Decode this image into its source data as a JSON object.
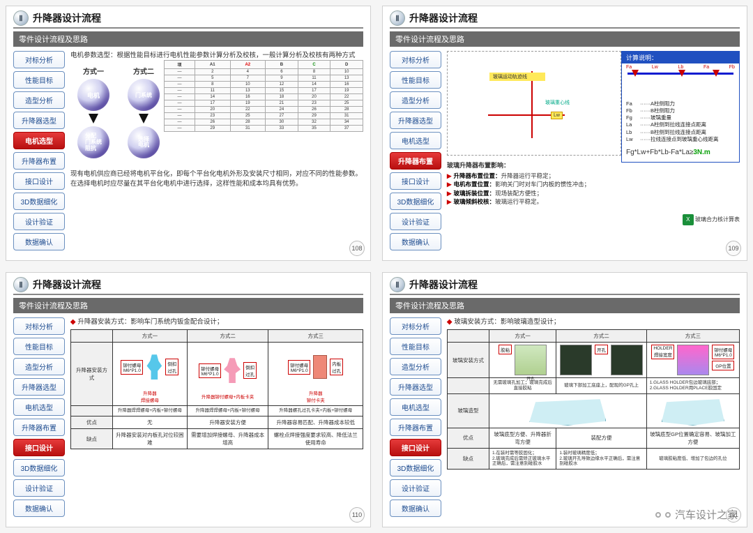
{
  "header": {
    "roman": "Ⅱ",
    "title": "升降器设计流程",
    "subtitle": "零件设计流程及思路"
  },
  "sidebar": [
    "对标分析",
    "性能目标",
    "造型分析",
    "升降器选型",
    "电机选型",
    "升降器布置",
    "接口设计",
    "3D数据细化",
    "设计验证",
    "数据确认"
  ],
  "page_numbers": [
    "108",
    "109",
    "110",
    "111"
  ],
  "active_index": [
    4,
    5,
    6,
    6
  ],
  "slide108": {
    "desc": "电机参数选型：根据性能目标进行电机性能参数计算分析及校核，一般计算分析及校核有两种方式",
    "m1": "方式一",
    "m2": "方式二",
    "ring_a1": "电机",
    "ring_a2": "分配\n门系统\n阻抗",
    "ring_b1": "门系统",
    "ring_b2": "选择\n电机",
    "note": "现有电机供应商已经将电机平台化，即每个平台化电机外形及安装尺寸相同，对应不同的性能参数。在选择电机时应尽量在其平台化电机中进行选择，这样性能和成本均具有优势。",
    "spec_headers": [
      "项",
      "A1",
      "A2",
      "B",
      "C",
      "D"
    ],
    "spec_rows": 10
  },
  "slide109": {
    "calc_title": "计算说明：",
    "torque_pts": [
      "Fa",
      "Lw",
      "Lb",
      "Fa",
      "Fb"
    ],
    "legend": [
      [
        "Fa",
        "A柱侧阻力"
      ],
      [
        "Fb",
        "B柱侧阻力"
      ],
      [
        "Fg",
        "玻璃重量"
      ],
      [
        "La",
        "A柱侧到拉线连接点距离"
      ],
      [
        "Lb",
        "B柱侧到拉线连接点距离"
      ],
      [
        "Lw",
        "拉线连接点到玻璃重心线距离"
      ]
    ],
    "formula_l": "Fg*Lw+Fb*Lb-Fa*La≥",
    "formula_r": "3N.m",
    "layout_title": "玻璃升降器布置影响：",
    "pts": [
      [
        "升降器布置位置：",
        "升降器运行平稳定；"
      ],
      [
        "电机布置位置：",
        "影响关门时对车门内板的惯性冲击；"
      ],
      [
        "玻璃拆装位置：",
        "现场装配方便性；"
      ],
      [
        "玻璃倾斜校核：",
        "玻璃运行平稳定。"
      ]
    ],
    "xls_label": "玻璃合力核计算表",
    "diag_tag1": "玻璃运动轨迹线",
    "diag_tag2": "玻璃重心线",
    "diag_lw": "Lw"
  },
  "slide110": {
    "lead": "升降器安装方式：影响车门系统内钣金配合设计；",
    "cols": [
      "方式一",
      "方式二",
      "方式三"
    ],
    "row1_h": "升降器安装方式",
    "row2_h": "",
    "row3_h": "优点",
    "row4_h": "缺点",
    "tag_a": "铆付螺母\nM6*P1.0",
    "tag_b": "倒扣\n过孔",
    "tag_c": "铆付螺母\nM6*P1.0",
    "tag_d": "倒扣\n过孔",
    "tag_e": "铆付螺母\nM6*P1.0",
    "tag_f": "内板\n过孔",
    "sub_a": "升降器\n焊接螺母",
    "sub_b": "升降器铆付螺母+内板卡夹",
    "sub_c": "升降器\n铆付卡夹",
    "r2a": "升降器焊焊螺母+内板+铆付螺母",
    "r2b": "升降器焊焊螺母+内板+铆付螺母",
    "r2c": "升降器螺孔过孔卡夹+内板+铆付螺母",
    "r3a": "无",
    "r3b": "升降器安装方便",
    "r3c": "升降器容易匹配、升降器成本较低",
    "r4a": "升降器安装对内板孔对位较困难",
    "r4b": "需要增加焊接螺母、升降器成本增高",
    "r4c": "螺栓点焊接强度要求较高、降低法兰使用寿命"
  },
  "slide111": {
    "lead": "玻璃安装方式：影响玻璃造型设计；",
    "cols": [
      "方式一",
      "方式二",
      "方式三"
    ],
    "row1_h": "玻璃安装方式",
    "row2_h": "玻璃造型",
    "row3_h": "优点",
    "row4_h": "缺点",
    "tag_a": "胶粘",
    "tag_b": "HOLDER\n焊接宽度",
    "tag_c": "开孔",
    "tag_d": "铆付螺母\nM6*P1.0",
    "tag_e": "GP位置",
    "cap_a": "开孔",
    "r1a": "无需玻璃孔加工；玻璃完成后直接胶粘",
    "r1b": "玻璃下部加工底座上，配现的GP孔上",
    "r1c": "1.GLASS HOLDER包边玻璃底部；\n2.GLASS HOLDER用PLACE胶固定",
    "r3a": "玻璃底型方便、升降器折弯方便",
    "r3b": "装配方便",
    "r3c": "玻璃底型GP位置确定容易、玻璃加工方便",
    "r4a": "1.在装时需等胶固化；\n2.玻璃完成后需矫正玻璃水平正确后，需注意别碰胶水",
    "r4b": "1.装时玻璃精度低；\n2.玻璃开孔导致边缘水平正确后，需注意别碰胶水",
    "r4c": "玻璃胶粘度低、增加了包边的孔位"
  },
  "watermark": "汽车设计之家"
}
